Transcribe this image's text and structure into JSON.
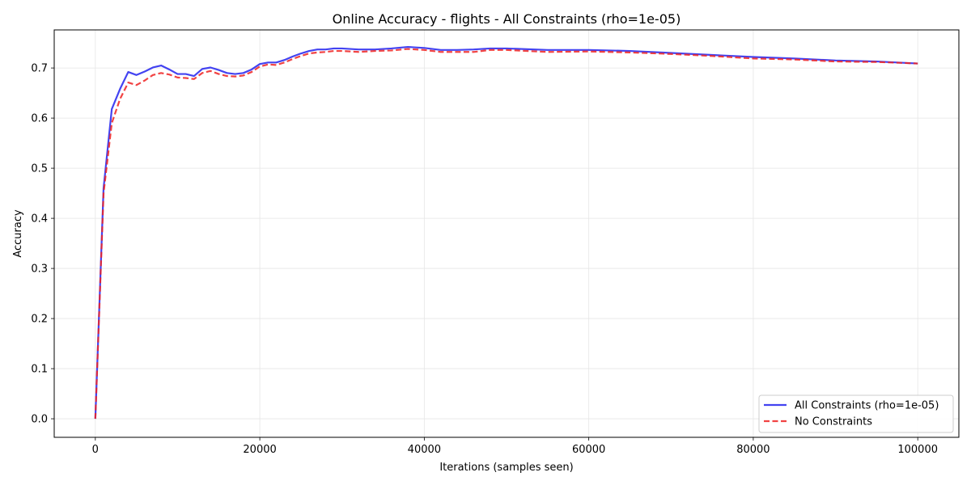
{
  "chart_data": {
    "type": "line",
    "title": "Online Accuracy - flights - All Constraints (rho=1e-05)",
    "xlabel": "Iterations (samples seen)",
    "ylabel": "Accuracy",
    "xlim": [
      -5000,
      105000
    ],
    "ylim": [
      -0.037,
      0.776
    ],
    "x_ticks": [
      0,
      20000,
      40000,
      60000,
      80000,
      100000
    ],
    "y_ticks": [
      0.0,
      0.1,
      0.2,
      0.3,
      0.4,
      0.5,
      0.6,
      0.7
    ],
    "grid": true,
    "legend_position": "bottom-right",
    "series": [
      {
        "name": "All Constraints (rho=1e-05)",
        "color": "#2222ee",
        "style": "solid",
        "x": [
          0,
          1000,
          2000,
          3000,
          4000,
          5000,
          6000,
          7000,
          8000,
          9000,
          10000,
          11000,
          12000,
          13000,
          14000,
          15000,
          16000,
          17000,
          18000,
          19000,
          20000,
          21000,
          22000,
          23000,
          24000,
          25000,
          26000,
          27000,
          28000,
          29000,
          30000,
          32000,
          34000,
          36000,
          38000,
          40000,
          42000,
          44000,
          46000,
          48000,
          50000,
          55000,
          60000,
          65000,
          70000,
          75000,
          80000,
          85000,
          90000,
          95000,
          100000
        ],
        "y": [
          0.0,
          0.46,
          0.618,
          0.658,
          0.692,
          0.686,
          0.693,
          0.701,
          0.705,
          0.697,
          0.688,
          0.688,
          0.684,
          0.698,
          0.701,
          0.696,
          0.69,
          0.688,
          0.69,
          0.697,
          0.708,
          0.711,
          0.711,
          0.716,
          0.723,
          0.729,
          0.734,
          0.737,
          0.737,
          0.739,
          0.739,
          0.737,
          0.737,
          0.739,
          0.742,
          0.74,
          0.736,
          0.736,
          0.737,
          0.739,
          0.739,
          0.736,
          0.736,
          0.734,
          0.73,
          0.726,
          0.722,
          0.719,
          0.715,
          0.713,
          0.709
        ]
      },
      {
        "name": "No Constraints",
        "color": "#ee2222",
        "style": "dashed",
        "x": [
          0,
          1000,
          2000,
          3000,
          4000,
          5000,
          6000,
          7000,
          8000,
          9000,
          10000,
          11000,
          12000,
          13000,
          14000,
          15000,
          16000,
          17000,
          18000,
          19000,
          20000,
          21000,
          22000,
          23000,
          24000,
          25000,
          26000,
          27000,
          28000,
          29000,
          30000,
          32000,
          34000,
          36000,
          38000,
          40000,
          42000,
          44000,
          46000,
          48000,
          50000,
          55000,
          60000,
          65000,
          70000,
          75000,
          80000,
          85000,
          90000,
          95000,
          100000
        ],
        "y": [
          0.0,
          0.45,
          0.59,
          0.638,
          0.671,
          0.666,
          0.675,
          0.686,
          0.69,
          0.687,
          0.681,
          0.68,
          0.678,
          0.69,
          0.694,
          0.688,
          0.684,
          0.683,
          0.685,
          0.692,
          0.703,
          0.707,
          0.706,
          0.711,
          0.718,
          0.724,
          0.729,
          0.731,
          0.732,
          0.734,
          0.734,
          0.732,
          0.734,
          0.735,
          0.738,
          0.736,
          0.732,
          0.732,
          0.732,
          0.736,
          0.736,
          0.732,
          0.733,
          0.731,
          0.728,
          0.724,
          0.719,
          0.717,
          0.713,
          0.712,
          0.709
        ]
      }
    ]
  }
}
